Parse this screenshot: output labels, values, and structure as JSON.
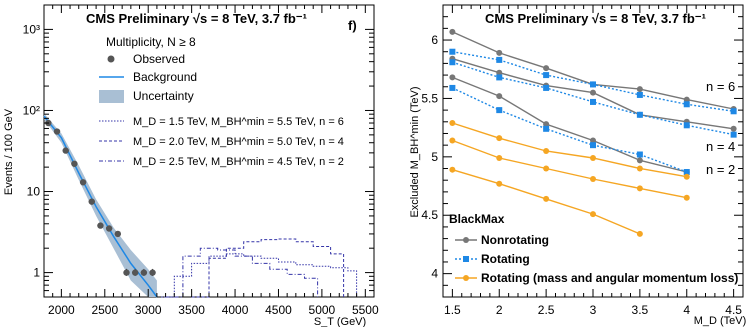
{
  "chart_data": [
    {
      "type": "line",
      "title": "CMS Preliminary √s = 8 TeV, 3.7 fb⁻¹",
      "panel_label": "f)",
      "xlabel": "S_T (GeV)",
      "ylabel": "Events / 100 GeV",
      "xlim": [
        1800,
        5600
      ],
      "ylim": [
        0.5,
        2000
      ],
      "yscale": "log",
      "x_ticks": [
        2000,
        2500,
        3000,
        3500,
        4000,
        4500,
        5000,
        5500
      ],
      "y_ticks": [
        {
          "value": 1,
          "label": "1"
        },
        {
          "value": 10,
          "label": "10"
        },
        {
          "value": 100,
          "label": "10²"
        },
        {
          "value": 1000,
          "label": "10³"
        }
      ],
      "legend_header": "Multiplicity, N ≥ 8",
      "legend": {
        "observed": "Observed",
        "background": "Background",
        "uncertainty": "Uncertainty",
        "model1": "M_D = 1.5 TeV, M_BH^min = 5.5 TeV, n = 6",
        "model2": "M_D = 2.0 TeV, M_BH^min = 5.0 TeV, n = 4",
        "model3": "M_D = 2.5 TeV, M_BH^min = 4.5 TeV, n = 2"
      },
      "observed": {
        "x": [
          1850,
          1950,
          2050,
          2150,
          2250,
          2350,
          2450,
          2550,
          2650,
          2750,
          2850,
          2950,
          3050
        ],
        "y": [
          70,
          55,
          32,
          22,
          13,
          7.5,
          3.8,
          3.5,
          3.0,
          1.0,
          1.0,
          1.0,
          1.0
        ]
      },
      "background": {
        "x": [
          1800,
          2000,
          2200,
          2400,
          2600,
          2800,
          3000,
          3100
        ],
        "y": [
          85,
          46,
          17,
          6.5,
          2.8,
          1.3,
          0.7,
          0.5
        ],
        "band_lower": [
          78,
          40,
          14,
          5.0,
          2.0,
          0.8,
          0.5,
          0.5
        ],
        "band_upper": [
          92,
          52,
          21,
          8.0,
          3.6,
          1.9,
          1.1,
          0.8
        ]
      },
      "signals": [
        {
          "x": [
            3150,
            3300,
            3500,
            3700,
            3900,
            4100,
            4300,
            4500,
            4700,
            4900,
            5100,
            5300,
            5400
          ],
          "y": [
            0.5,
            0.9,
            1.3,
            1.6,
            1.7,
            1.6,
            1.5,
            1.35,
            1.25,
            1.2,
            1.15,
            1.05,
            0.5
          ]
        },
        {
          "x": [
            3500,
            3700,
            3900,
            4100,
            4300,
            4500,
            4700,
            4900,
            5100,
            5250
          ],
          "y": [
            0.5,
            1.5,
            2.0,
            2.4,
            2.55,
            2.6,
            2.4,
            2.1,
            1.7,
            0.5
          ]
        },
        {
          "x": [
            3200,
            3400,
            3600,
            3800,
            4000,
            4200,
            4400,
            4600,
            4800,
            4950
          ],
          "y": [
            0.5,
            1.6,
            2.0,
            1.9,
            1.6,
            1.3,
            1.1,
            0.95,
            0.85,
            0.5
          ]
        }
      ]
    },
    {
      "type": "line",
      "title": "CMS Preliminary √s = 8 TeV, 3.7 fb⁻¹",
      "xlabel": "M_D (TeV)",
      "ylabel": "Excluded M_BH^min (TeV)",
      "xlim": [
        1.4,
        4.6
      ],
      "ylim": [
        3.8,
        6.3
      ],
      "x_ticks": [
        1.5,
        2,
        2.5,
        3,
        3.5,
        4,
        4.5
      ],
      "y_ticks": [
        4,
        4.5,
        5,
        5.5,
        6
      ],
      "legend_title": "BlackMax",
      "curve_labels": [
        "n = 6",
        "n = 4",
        "n = 2"
      ],
      "series": [
        {
          "name": "Nonrotating",
          "group": "n = 6",
          "x": [
            1.5,
            2,
            2.5,
            3,
            3.5,
            4,
            4.5
          ],
          "y": [
            6.07,
            5.89,
            5.76,
            5.62,
            5.58,
            5.49,
            5.41
          ]
        },
        {
          "name": "Nonrotating",
          "group": "n = 4",
          "x": [
            1.5,
            2,
            2.5,
            3,
            3.5,
            4,
            4.5
          ],
          "y": [
            5.84,
            5.72,
            5.61,
            5.55,
            5.36,
            5.3,
            5.24
          ]
        },
        {
          "name": "Nonrotating",
          "group": "n = 2",
          "x": [
            1.5,
            2,
            2.5,
            3,
            3.5,
            4
          ],
          "y": [
            5.68,
            5.52,
            5.28,
            5.14,
            4.97,
            4.87
          ]
        },
        {
          "name": "Rotating",
          "group": "n = 6",
          "x": [
            1.5,
            2,
            2.5,
            3,
            3.5,
            4,
            4.5
          ],
          "y": [
            5.9,
            5.83,
            5.7,
            5.62,
            5.53,
            5.45,
            5.39
          ]
        },
        {
          "name": "Rotating",
          "group": "n = 4",
          "x": [
            1.5,
            2,
            2.5,
            3,
            3.5,
            4,
            4.5
          ],
          "y": [
            5.81,
            5.68,
            5.59,
            5.47,
            5.36,
            5.27,
            5.19
          ]
        },
        {
          "name": "Rotating",
          "group": "n = 2",
          "x": [
            1.5,
            2,
            2.5,
            3,
            3.5,
            4
          ],
          "y": [
            5.59,
            5.4,
            5.24,
            5.1,
            5.02,
            4.87
          ]
        },
        {
          "name": "Rotating (mass and angular momentum loss)",
          "group": "a",
          "x": [
            1.5,
            2,
            2.5,
            3,
            3.5,
            4
          ],
          "y": [
            5.29,
            5.16,
            5.05,
            4.99,
            4.9,
            4.83
          ]
        },
        {
          "name": "Rotating (mass and angular momentum loss)",
          "group": "b",
          "x": [
            1.5,
            2,
            2.5,
            3,
            3.5,
            4
          ],
          "y": [
            5.14,
            4.99,
            4.9,
            4.81,
            4.73,
            4.65
          ]
        },
        {
          "name": "Rotating (mass and angular momentum loss)",
          "group": "c",
          "x": [
            1.5,
            2,
            2.5,
            3,
            3.5
          ],
          "y": [
            4.89,
            4.77,
            4.64,
            4.51,
            4.34
          ]
        }
      ],
      "legend": [
        {
          "name": "Nonrotating",
          "style": "solid",
          "marker": "circle",
          "color": "#777777"
        },
        {
          "name": "Rotating",
          "style": "dotted",
          "marker": "square",
          "color": "#1e88e5"
        },
        {
          "name": "Rotating (mass and angular momentum loss)",
          "style": "solid",
          "marker": "circle",
          "color": "#f5a623"
        }
      ]
    }
  ]
}
